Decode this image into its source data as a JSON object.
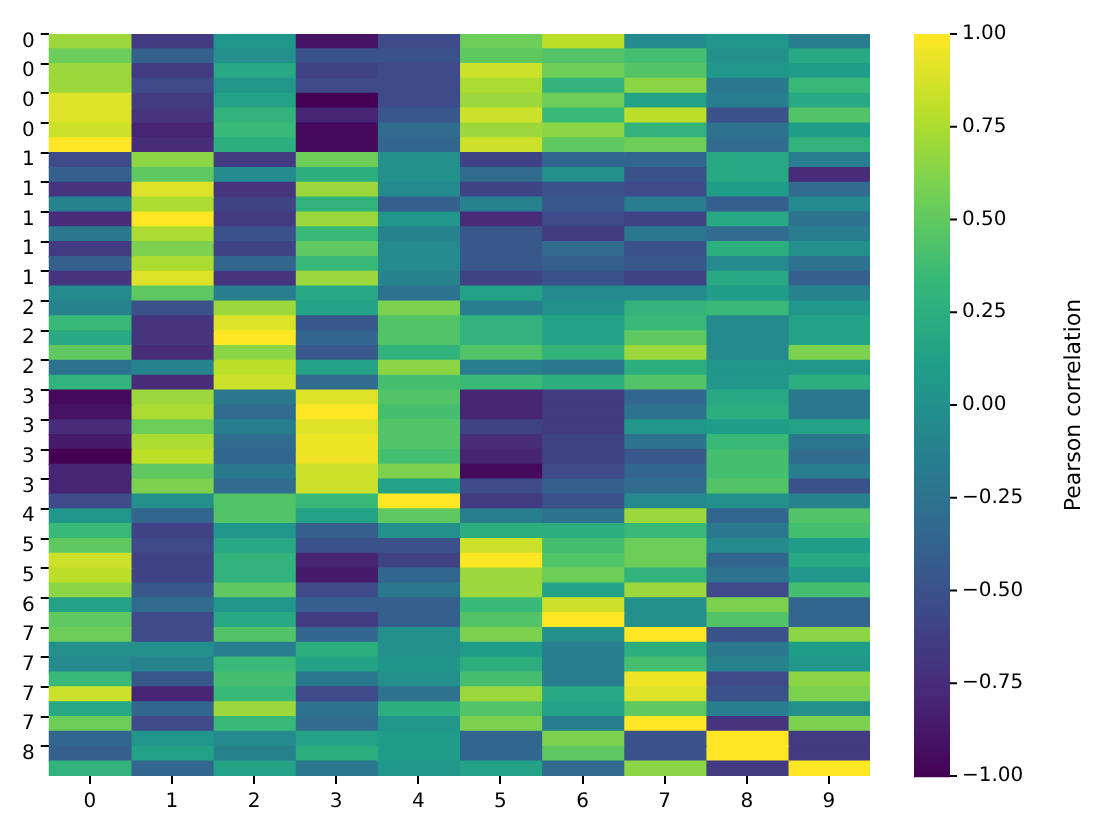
{
  "chart_data": {
    "type": "heatmap",
    "clabel": "Pearson correlation",
    "clim": [
      -1,
      1
    ],
    "cticks": [
      {
        "value": 1,
        "label": "1.00"
      },
      {
        "value": 0.75,
        "label": "0.75"
      },
      {
        "value": 0.5,
        "label": "0.50"
      },
      {
        "value": 0.25,
        "label": "0.25"
      },
      {
        "value": 0,
        "label": "0.00"
      },
      {
        "value": -0.25,
        "label": "−0.25"
      },
      {
        "value": -0.5,
        "label": "−0.50"
      },
      {
        "value": -0.75,
        "label": "−0.75"
      },
      {
        "value": -1,
        "label": "−1.00"
      }
    ],
    "categories": [
      "0",
      "1",
      "2",
      "3",
      "4",
      "5",
      "6",
      "7",
      "8",
      "9"
    ],
    "y_categories": [
      "0",
      null,
      "0",
      null,
      "0",
      null,
      "0",
      null,
      "1",
      null,
      "1",
      null,
      "1",
      null,
      "1",
      null,
      "1",
      null,
      "2",
      null,
      "2",
      null,
      "2",
      null,
      "3",
      null,
      "3",
      null,
      "3",
      null,
      "3",
      null,
      "4",
      null,
      "5",
      null,
      "5",
      null,
      "6",
      null,
      "7",
      null,
      "7",
      null,
      "7",
      null,
      "7",
      null,
      "8",
      null
    ],
    "cells": [
      [
        0.7,
        -0.65,
        0.05,
        -0.9,
        -0.55,
        0.55,
        0.8,
        -0.05,
        0.05,
        -0.15
      ],
      [
        0.55,
        -0.4,
        0.0,
        -0.5,
        -0.5,
        0.5,
        0.45,
        0.4,
        0.0,
        0.2
      ],
      [
        0.7,
        -0.65,
        0.2,
        -0.6,
        -0.55,
        0.85,
        0.55,
        0.45,
        0.05,
        0.1
      ],
      [
        0.7,
        -0.55,
        0.05,
        -0.55,
        -0.55,
        0.75,
        0.3,
        0.65,
        -0.2,
        0.35
      ],
      [
        0.9,
        -0.65,
        0.15,
        -1.0,
        -0.55,
        0.7,
        0.55,
        0.15,
        -0.15,
        0.2
      ],
      [
        0.9,
        -0.7,
        0.3,
        -0.8,
        -0.45,
        0.85,
        0.35,
        0.8,
        -0.5,
        0.45
      ],
      [
        0.85,
        -0.8,
        0.35,
        -0.95,
        -0.3,
        0.7,
        0.65,
        0.3,
        -0.25,
        0.1
      ],
      [
        1.0,
        -0.75,
        0.25,
        -0.95,
        -0.35,
        0.85,
        0.5,
        0.55,
        -0.3,
        0.3
      ],
      [
        -0.55,
        0.65,
        -0.65,
        0.55,
        0.0,
        -0.6,
        -0.35,
        -0.35,
        0.2,
        -0.15
      ],
      [
        -0.4,
        0.5,
        -0.05,
        0.25,
        0.0,
        -0.3,
        0.0,
        -0.5,
        0.2,
        -0.75
      ],
      [
        -0.7,
        0.9,
        -0.7,
        0.7,
        -0.05,
        -0.6,
        -0.5,
        -0.55,
        0.1,
        -0.3
      ],
      [
        -0.1,
        0.75,
        -0.6,
        0.3,
        -0.4,
        -0.1,
        -0.45,
        -0.15,
        -0.4,
        -0.05
      ],
      [
        -0.75,
        1.0,
        -0.65,
        0.7,
        0.05,
        -0.75,
        -0.55,
        -0.6,
        0.2,
        -0.25
      ],
      [
        -0.2,
        0.75,
        -0.5,
        0.35,
        -0.1,
        -0.45,
        -0.65,
        -0.2,
        -0.3,
        -0.15
      ],
      [
        -0.65,
        0.6,
        -0.6,
        0.5,
        -0.05,
        -0.45,
        -0.3,
        -0.5,
        0.25,
        0.0
      ],
      [
        -0.4,
        0.75,
        -0.35,
        0.35,
        -0.05,
        -0.45,
        -0.4,
        -0.45,
        -0.05,
        -0.25
      ],
      [
        -0.7,
        0.9,
        -0.7,
        0.7,
        -0.1,
        -0.6,
        -0.5,
        -0.6,
        0.2,
        -0.4
      ],
      [
        -0.05,
        0.5,
        -0.15,
        0.2,
        -0.25,
        0.15,
        -0.05,
        -0.05,
        0.1,
        -0.1
      ],
      [
        -0.1,
        -0.5,
        0.7,
        0.15,
        0.6,
        -0.15,
        0.0,
        0.3,
        0.35,
        0.05
      ],
      [
        0.35,
        -0.7,
        0.9,
        -0.45,
        0.45,
        0.3,
        0.15,
        0.35,
        -0.05,
        0.15
      ],
      [
        0.2,
        -0.7,
        1.0,
        -0.35,
        0.45,
        0.3,
        0.15,
        0.5,
        -0.05,
        0.15
      ],
      [
        0.5,
        -0.75,
        0.65,
        -0.45,
        0.3,
        0.45,
        0.3,
        0.7,
        -0.05,
        0.6
      ],
      [
        -0.25,
        -0.1,
        0.8,
        0.15,
        0.65,
        -0.15,
        -0.2,
        0.25,
        0.05,
        0.05
      ],
      [
        0.3,
        -0.75,
        0.85,
        -0.3,
        0.4,
        0.35,
        0.25,
        0.45,
        0.05,
        0.25
      ],
      [
        -0.95,
        0.7,
        -0.2,
        0.9,
        0.45,
        -0.8,
        -0.65,
        -0.35,
        0.2,
        -0.2
      ],
      [
        -0.9,
        0.75,
        -0.3,
        1.0,
        0.4,
        -0.8,
        -0.65,
        -0.25,
        0.25,
        -0.2
      ],
      [
        -0.75,
        0.55,
        -0.15,
        0.9,
        0.45,
        -0.6,
        -0.65,
        0.05,
        0.1,
        0.15
      ],
      [
        -0.85,
        0.75,
        -0.3,
        0.95,
        0.45,
        -0.75,
        -0.6,
        -0.25,
        0.35,
        -0.2
      ],
      [
        -1.0,
        0.8,
        -0.35,
        0.95,
        0.4,
        -0.8,
        -0.6,
        -0.45,
        0.4,
        -0.3
      ],
      [
        -0.8,
        0.5,
        -0.2,
        0.85,
        0.6,
        -0.95,
        -0.55,
        -0.35,
        0.4,
        -0.15
      ],
      [
        -0.8,
        0.6,
        -0.3,
        0.85,
        0.15,
        -0.55,
        -0.4,
        -0.3,
        0.45,
        -0.5
      ],
      [
        -0.55,
        0.0,
        0.45,
        0.35,
        1.0,
        -0.65,
        -0.5,
        -0.05,
        0.0,
        -0.1
      ],
      [
        0.05,
        -0.35,
        0.45,
        0.15,
        0.5,
        -0.15,
        -0.25,
        0.7,
        -0.35,
        0.45
      ],
      [
        0.35,
        -0.6,
        0.05,
        -0.4,
        0.0,
        0.25,
        0.25,
        0.35,
        -0.2,
        0.4
      ],
      [
        0.5,
        -0.55,
        0.2,
        -0.5,
        -0.5,
        0.85,
        0.4,
        0.55,
        -0.05,
        0.1
      ],
      [
        0.85,
        -0.6,
        0.3,
        -0.8,
        -0.6,
        1.0,
        0.45,
        0.55,
        -0.35,
        0.2
      ],
      [
        0.8,
        -0.6,
        0.3,
        -0.85,
        -0.35,
        0.7,
        0.55,
        0.3,
        -0.25,
        0.05
      ],
      [
        0.65,
        -0.45,
        0.5,
        -0.55,
        -0.2,
        0.7,
        0.15,
        0.7,
        -0.55,
        0.4
      ],
      [
        0.15,
        -0.3,
        0.05,
        -0.4,
        -0.4,
        0.35,
        0.85,
        0.0,
        0.6,
        -0.35
      ],
      [
        0.5,
        -0.55,
        0.2,
        -0.65,
        -0.4,
        0.45,
        1.0,
        0.0,
        0.45,
        -0.35
      ],
      [
        0.55,
        -0.55,
        0.45,
        -0.35,
        0.0,
        0.6,
        0.0,
        1.0,
        -0.5,
        0.65
      ],
      [
        0.0,
        0.0,
        -0.15,
        0.25,
        0.0,
        0.1,
        -0.15,
        0.25,
        -0.2,
        0.1
      ],
      [
        -0.05,
        -0.1,
        0.35,
        0.15,
        0.05,
        0.25,
        -0.15,
        0.4,
        -0.1,
        0.05
      ],
      [
        0.35,
        -0.45,
        0.4,
        -0.2,
        0.0,
        0.4,
        -0.15,
        0.95,
        -0.55,
        0.65
      ],
      [
        0.85,
        -0.8,
        0.35,
        -0.55,
        -0.25,
        0.7,
        0.2,
        0.9,
        -0.5,
        0.6
      ],
      [
        0.2,
        -0.35,
        0.7,
        -0.25,
        0.25,
        0.45,
        0.15,
        0.5,
        -0.15,
        0.0
      ],
      [
        0.55,
        -0.55,
        0.35,
        -0.3,
        0.05,
        0.6,
        -0.15,
        1.0,
        -0.7,
        0.6
      ],
      [
        -0.35,
        0.05,
        -0.05,
        0.15,
        0.1,
        -0.35,
        0.6,
        -0.5,
        1.0,
        -0.65
      ],
      [
        -0.4,
        0.15,
        -0.1,
        0.25,
        0.1,
        -0.35,
        0.5,
        -0.5,
        1.0,
        -0.65
      ],
      [
        0.3,
        -0.35,
        0.15,
        -0.2,
        0.05,
        0.15,
        -0.3,
        0.65,
        -0.65,
        1.0
      ]
    ]
  }
}
